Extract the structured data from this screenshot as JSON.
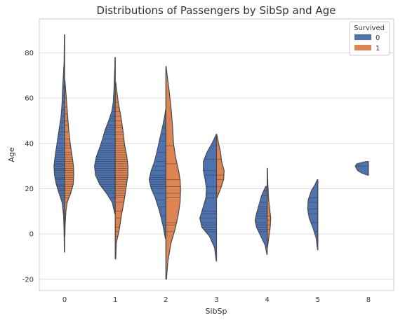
{
  "chart_data": {
    "type": "violin",
    "title": "Distributions of Passengers by SibSp and Age",
    "xlabel": "SibSp",
    "ylabel": "Age",
    "categories": [
      "0",
      "1",
      "2",
      "3",
      "4",
      "5",
      "8"
    ],
    "ylim": [
      -25,
      95
    ],
    "yticks": [
      -20,
      0,
      20,
      40,
      60,
      80
    ],
    "grid": true,
    "split": true,
    "inner": "stick",
    "legend": {
      "title": "Survived",
      "placement": "top-right",
      "entries": [
        {
          "label": "0",
          "color": "#4c72b0"
        },
        {
          "label": "1",
          "color": "#dd8452"
        }
      ]
    },
    "series": [
      {
        "name": "0",
        "color": "#4c72b0",
        "violins": [
          {
            "category": "0",
            "min": -8,
            "max": 88,
            "profile": [
              [
                -8,
                0.01
              ],
              [
                0,
                0.02
              ],
              [
                8,
                0.04
              ],
              [
                14,
                0.1
              ],
              [
                18,
                0.22
              ],
              [
                22,
                0.33
              ],
              [
                26,
                0.4
              ],
              [
                30,
                0.42
              ],
              [
                34,
                0.38
              ],
              [
                40,
                0.3
              ],
              [
                46,
                0.22
              ],
              [
                52,
                0.14
              ],
              [
                58,
                0.1
              ],
              [
                64,
                0.08
              ],
              [
                70,
                0.05
              ],
              [
                76,
                0.02
              ],
              [
                82,
                0.015
              ],
              [
                88,
                0.01
              ]
            ],
            "sticks": [
              -2,
              4,
              9,
              12,
              15,
              16,
              17,
              18,
              19,
              19.5,
              20,
              21,
              21.5,
              22,
              23,
              24,
              24.5,
              25,
              26,
              27,
              28,
              28.5,
              29,
              30,
              30.5,
              31,
              32,
              33,
              34,
              35,
              36,
              37,
              38,
              40,
              42,
              44,
              45,
              47,
              49,
              50,
              52,
              55,
              58,
              61,
              65,
              70,
              74
            ]
          },
          {
            "category": "1",
            "min": 9,
            "max": 78,
            "profile": [
              [
                9,
                0.02
              ],
              [
                14,
                0.12
              ],
              [
                18,
                0.35
              ],
              [
                22,
                0.62
              ],
              [
                26,
                0.78
              ],
              [
                30,
                0.82
              ],
              [
                34,
                0.75
              ],
              [
                38,
                0.62
              ],
              [
                42,
                0.5
              ],
              [
                46,
                0.4
              ],
              [
                50,
                0.26
              ],
              [
                54,
                0.14
              ],
              [
                58,
                0.08
              ],
              [
                64,
                0.05
              ],
              [
                70,
                0.03
              ],
              [
                74,
                0.015
              ],
              [
                78,
                0.01
              ]
            ],
            "sticks": [
              16,
              18,
              19,
              20,
              21,
              22,
              23,
              24,
              25,
              26,
              27,
              28,
              29,
              30,
              31,
              32,
              33,
              34,
              35,
              36,
              37,
              38,
              39,
              40,
              42,
              44,
              45,
              46,
              47,
              48,
              50,
              51,
              52,
              54,
              56
            ]
          },
          {
            "category": "2",
            "min": -2,
            "max": 55,
            "profile": [
              [
                -2,
                0.02
              ],
              [
                4,
                0.12
              ],
              [
                10,
                0.25
              ],
              [
                16,
                0.42
              ],
              [
                20,
                0.58
              ],
              [
                24,
                0.66
              ],
              [
                28,
                0.58
              ],
              [
                32,
                0.45
              ],
              [
                36,
                0.36
              ],
              [
                40,
                0.28
              ],
              [
                44,
                0.2
              ],
              [
                48,
                0.12
              ],
              [
                52,
                0.05
              ],
              [
                55,
                0.01
              ]
            ],
            "sticks": [
              1,
              4,
              8,
              12,
              15,
              18,
              20,
              21,
              22,
              23,
              24,
              25,
              26,
              28,
              30,
              32,
              36,
              41,
              44,
              47
            ]
          },
          {
            "category": "3",
            "min": -12,
            "max": 44,
            "profile": [
              [
                -12,
                0.01
              ],
              [
                -6,
                0.08
              ],
              [
                -1,
                0.28
              ],
              [
                3,
                0.58
              ],
              [
                7,
                0.66
              ],
              [
                11,
                0.55
              ],
              [
                16,
                0.42
              ],
              [
                20,
                0.4
              ],
              [
                24,
                0.45
              ],
              [
                28,
                0.52
              ],
              [
                32,
                0.52
              ],
              [
                36,
                0.38
              ],
              [
                40,
                0.18
              ],
              [
                44,
                0.01
              ]
            ],
            "sticks": [
              1,
              2,
              3,
              4,
              5,
              7,
              9,
              10,
              16,
              18,
              21,
              26,
              28,
              33,
              39
            ]
          },
          {
            "category": "4",
            "min": -9,
            "max": 21,
            "profile": [
              [
                -9,
                0.01
              ],
              [
                -5,
                0.08
              ],
              [
                -1,
                0.25
              ],
              [
                3,
                0.42
              ],
              [
                6,
                0.48
              ],
              [
                9,
                0.42
              ],
              [
                13,
                0.32
              ],
              [
                17,
                0.22
              ],
              [
                21,
                0.06
              ]
            ],
            "sticks": [
              1,
              2,
              3,
              4,
              5,
              7,
              8,
              9,
              10,
              11,
              12,
              14,
              17,
              19
            ]
          },
          {
            "category": "5",
            "min": -7,
            "max": 24,
            "profile": [
              [
                -7,
                0.01
              ],
              [
                -2,
                0.06
              ],
              [
                3,
                0.2
              ],
              [
                7,
                0.34
              ],
              [
                11,
                0.4
              ],
              [
                15,
                0.38
              ],
              [
                19,
                0.26
              ],
              [
                22,
                0.1
              ],
              [
                24,
                0.02
              ]
            ],
            "sticks": [
              1,
              5,
              9,
              11,
              14,
              16
            ]
          },
          {
            "category": "8",
            "min": 26,
            "max": 32,
            "profile": [
              [
                26,
                0.04
              ],
              [
                27,
                0.28
              ],
              [
                28,
                0.42
              ],
              [
                29,
                0.48
              ],
              [
                30,
                0.52
              ],
              [
                31,
                0.46
              ],
              [
                32,
                0.1
              ]
            ],
            "sticks": [
              30
            ]
          }
        ]
      },
      {
        "name": "1",
        "color": "#dd8452",
        "violins": [
          {
            "category": "0",
            "min": -1,
            "max": 68,
            "profile": [
              [
                -1,
                0.01
              ],
              [
                4,
                0.02
              ],
              [
                10,
                0.05
              ],
              [
                14,
                0.1
              ],
              [
                18,
                0.24
              ],
              [
                22,
                0.34
              ],
              [
                26,
                0.36
              ],
              [
                30,
                0.35
              ],
              [
                34,
                0.3
              ],
              [
                40,
                0.22
              ],
              [
                46,
                0.16
              ],
              [
                52,
                0.12
              ],
              [
                58,
                0.08
              ],
              [
                64,
                0.04
              ],
              [
                68,
                0.01
              ]
            ],
            "sticks": [
              0,
              3,
              9,
              14,
              16,
              17,
              18,
              19,
              20,
              21,
              22,
              23,
              24,
              25,
              26,
              27,
              28,
              29,
              30,
              31,
              32,
              33,
              34,
              35,
              36,
              38,
              39,
              40,
              42,
              45,
              48,
              50,
              53,
              56,
              60,
              63
            ]
          },
          {
            "category": "1",
            "min": -11,
            "max": 67,
            "profile": [
              [
                -11,
                0.02
              ],
              [
                -4,
                0.04
              ],
              [
                2,
                0.16
              ],
              [
                8,
                0.24
              ],
              [
                14,
                0.34
              ],
              [
                20,
                0.42
              ],
              [
                26,
                0.5
              ],
              [
                30,
                0.5
              ],
              [
                34,
                0.46
              ],
              [
                40,
                0.36
              ],
              [
                46,
                0.3
              ],
              [
                52,
                0.22
              ],
              [
                58,
                0.12
              ],
              [
                64,
                0.05
              ],
              [
                67,
                0.02
              ]
            ],
            "sticks": [
              -1,
              1,
              3,
              7,
              10,
              14,
              16,
              17,
              18,
              19,
              20,
              21,
              22,
              23,
              24,
              25,
              26,
              27,
              28,
              29,
              30,
              31,
              32,
              33,
              34,
              35,
              36,
              37,
              38,
              39,
              40,
              41,
              42,
              44,
              45,
              47,
              48,
              50,
              52,
              54,
              56,
              58,
              62
            ]
          },
          {
            "category": "2",
            "min": -20,
            "max": 74,
            "profile": [
              [
                -20,
                0.02
              ],
              [
                -12,
                0.08
              ],
              [
                -4,
                0.2
              ],
              [
                2,
                0.36
              ],
              [
                8,
                0.48
              ],
              [
                14,
                0.56
              ],
              [
                20,
                0.58
              ],
              [
                24,
                0.56
              ],
              [
                28,
                0.5
              ],
              [
                34,
                0.38
              ],
              [
                40,
                0.3
              ],
              [
                48,
                0.26
              ],
              [
                56,
                0.2
              ],
              [
                64,
                0.12
              ],
              [
                70,
                0.05
              ],
              [
                74,
                0.01
              ]
            ],
            "sticks": [
              1,
              4,
              5,
              16,
              18,
              21,
              24,
              31,
              39
            ]
          },
          {
            "category": "3",
            "min": 16,
            "max": 44,
            "profile": [
              [
                16,
                0.02
              ],
              [
                20,
                0.16
              ],
              [
                24,
                0.28
              ],
              [
                28,
                0.3
              ],
              [
                32,
                0.2
              ],
              [
                36,
                0.16
              ],
              [
                40,
                0.08
              ],
              [
                44,
                0.01
              ]
            ],
            "sticks": [
              18,
              21,
              24,
              26,
              33
            ]
          },
          {
            "category": "4",
            "min": -6,
            "max": 29,
            "profile": [
              [
                -6,
                0.01
              ],
              [
                -1,
                0.07
              ],
              [
                3,
                0.12
              ],
              [
                7,
                0.14
              ],
              [
                11,
                0.1
              ],
              [
                15,
                0.06
              ],
              [
                19,
                0.04
              ],
              [
                24,
                0.02
              ],
              [
                29,
                0.01
              ]
            ],
            "sticks": [
              0,
              2,
              4,
              6,
              8
            ]
          }
        ]
      }
    ]
  }
}
